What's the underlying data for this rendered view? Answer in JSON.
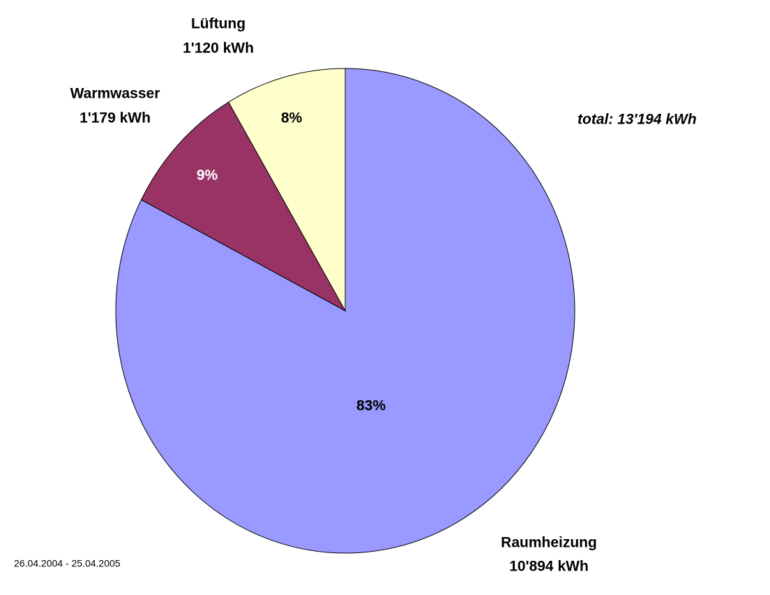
{
  "chart_data": {
    "type": "pie",
    "categories": [
      "Raumheizung",
      "Warmwasser",
      "Lüftung"
    ],
    "values": [
      10894,
      1179,
      1120
    ],
    "value_labels": [
      "10'894 kWh",
      "1'179 kWh",
      "1'120 kWh"
    ],
    "percent_labels": [
      "83%",
      "9%",
      "8%"
    ],
    "colors": [
      "#9999ff",
      "#993366",
      "#ffffcc"
    ],
    "annotation": "total: 13'194 kWh",
    "footnote": "26.04.2004 - 25.04.2005"
  }
}
